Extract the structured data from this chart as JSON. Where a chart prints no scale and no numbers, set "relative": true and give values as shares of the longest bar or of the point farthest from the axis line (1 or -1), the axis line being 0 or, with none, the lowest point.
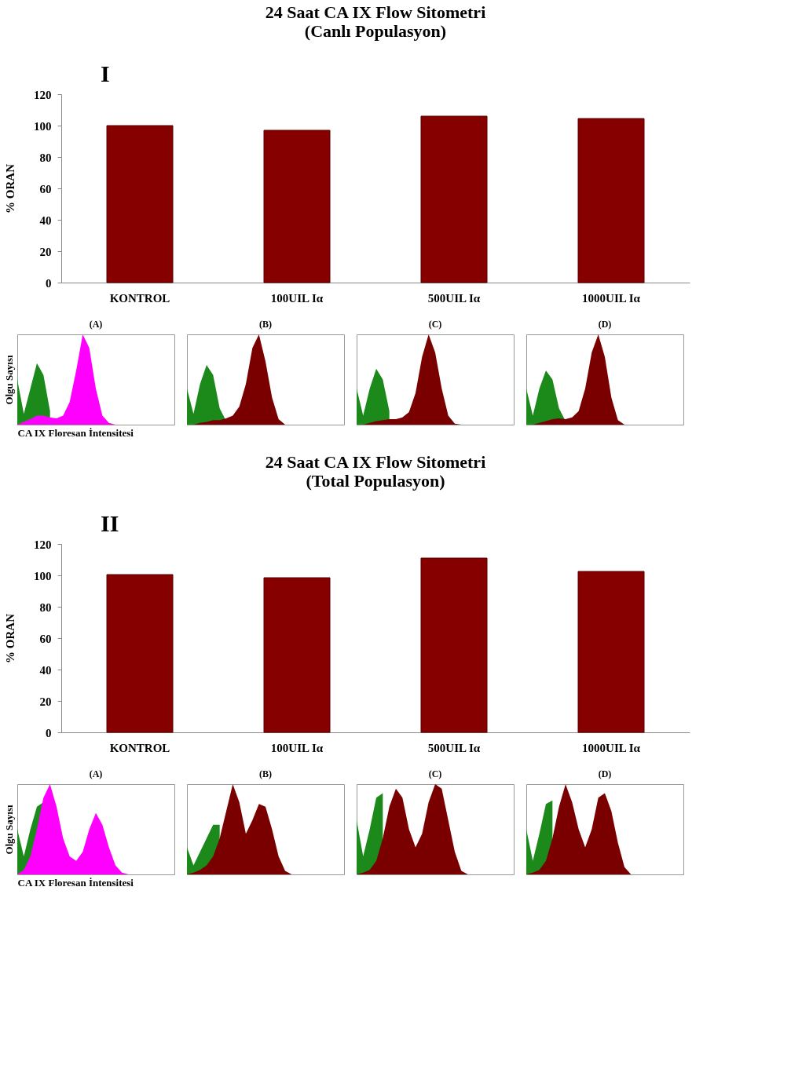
{
  "chart_data": [
    {
      "type": "bar",
      "title": [
        "24 Saat CA IX Flow Sitometri",
        "(Canlı Populasyon)"
      ],
      "annotations": [
        "I"
      ],
      "ylabel": "% ORAN",
      "categories": [
        "KONTROL",
        "100UIL Iα",
        "500UIL Iα",
        "1000UIL Iα"
      ],
      "values": [
        100,
        97,
        106,
        104.5
      ],
      "color": "#860000",
      "ylim": [
        0,
        120
      ],
      "yticks": [
        0,
        20,
        40,
        60,
        80,
        100,
        120
      ],
      "grid": false
    },
    {
      "type": "area",
      "relative": true,
      "title": "(A)",
      "xlabel": "CA IX Floresan İntensitesi",
      "ylabel": "Olgu Sayısı",
      "tick_labels": false,
      "categories": [
        null,
        null,
        null,
        null,
        null,
        null,
        null,
        null,
        null,
        null,
        null,
        null,
        null,
        null,
        null,
        null,
        null,
        null,
        null,
        null,
        null,
        null,
        null,
        null,
        null
      ],
      "series": [
        {
          "color": "#1b8a1b",
          "values": [
            0.5,
            0.12,
            0.4,
            0.68,
            0.55,
            0.15,
            null,
            null,
            null,
            null,
            null,
            null,
            null,
            null,
            null,
            null,
            null,
            null,
            null,
            null,
            null,
            null,
            null,
            null,
            null
          ]
        },
        {
          "color": "#ff00ff",
          "values": [
            0,
            0.03,
            0.06,
            0.1,
            0.1,
            0.08,
            0.07,
            0.1,
            0.25,
            0.6,
            1,
            0.85,
            0.4,
            0.1,
            0.02,
            0,
            0,
            0,
            0,
            0,
            0,
            0,
            0,
            0,
            0
          ]
        }
      ]
    },
    {
      "type": "area",
      "relative": true,
      "title": "(B)",
      "tick_labels": false,
      "categories": [
        null,
        null,
        null,
        null,
        null,
        null,
        null,
        null,
        null,
        null,
        null,
        null,
        null,
        null,
        null,
        null,
        null,
        null,
        null,
        null,
        null,
        null,
        null,
        null,
        null
      ],
      "series": [
        {
          "color": "#1b8a1b",
          "values": [
            0.4,
            0.12,
            0.45,
            0.66,
            0.55,
            0.18,
            0.04,
            0,
            0,
            0,
            0,
            0,
            0,
            0,
            0,
            0,
            0,
            0,
            0,
            0,
            0,
            0,
            0,
            0,
            0
          ]
        },
        {
          "color": "#7a0000",
          "values": [
            0,
            0,
            0.02,
            0.03,
            0.05,
            0.05,
            0.07,
            0.1,
            0.2,
            0.45,
            0.85,
            1,
            0.7,
            0.3,
            0.06,
            0,
            0,
            0,
            0,
            0,
            0,
            0,
            0,
            0,
            0
          ]
        }
      ]
    },
    {
      "type": "area",
      "relative": true,
      "title": "(C)",
      "tick_labels": false,
      "categories": [
        null,
        null,
        null,
        null,
        null,
        null,
        null,
        null,
        null,
        null,
        null,
        null,
        null,
        null,
        null,
        null,
        null,
        null,
        null,
        null,
        null,
        null,
        null,
        null,
        null
      ],
      "series": [
        {
          "color": "#1b8a1b",
          "values": [
            0.4,
            0.1,
            0.4,
            0.62,
            0.5,
            0.15,
            null,
            null,
            null,
            null,
            null,
            null,
            null,
            null,
            null,
            null,
            null,
            null,
            null,
            null,
            null,
            null,
            null,
            null,
            null
          ]
        },
        {
          "color": "#7a0000",
          "values": [
            0,
            0,
            0.02,
            0.04,
            0.05,
            0.06,
            0.06,
            0.08,
            0.14,
            0.35,
            0.75,
            1,
            0.8,
            0.4,
            0.1,
            0.01,
            0,
            0,
            0,
            0,
            0,
            0,
            0,
            0,
            0
          ]
        }
      ]
    },
    {
      "type": "area",
      "relative": true,
      "title": "(D)",
      "tick_labels": false,
      "categories": [
        null,
        null,
        null,
        null,
        null,
        null,
        null,
        null,
        null,
        null,
        null,
        null,
        null,
        null,
        null,
        null,
        null,
        null,
        null,
        null,
        null,
        null,
        null,
        null,
        null
      ],
      "series": [
        {
          "color": "#1b8a1b",
          "values": [
            0.4,
            0.1,
            0.4,
            0.6,
            0.5,
            0.18,
            0.04,
            0,
            0,
            0,
            0,
            0,
            0,
            0,
            0,
            0,
            0,
            0,
            0,
            0,
            0,
            0,
            0,
            0,
            0
          ]
        },
        {
          "color": "#7a0000",
          "values": [
            0,
            0,
            0.02,
            0.04,
            0.06,
            0.07,
            0.06,
            0.08,
            0.15,
            0.4,
            0.8,
            1,
            0.75,
            0.3,
            0.05,
            0,
            0,
            0,
            0,
            0,
            0,
            0,
            0,
            0,
            0
          ]
        }
      ]
    },
    {
      "type": "bar",
      "title": [
        "24 Saat CA IX Flow Sitometri",
        "(Total Populasyon)"
      ],
      "annotations": [
        "II"
      ],
      "ylabel": "% ORAN",
      "categories": [
        "KONTROL",
        "100UIL Iα",
        "500UIL Iα",
        "1000UIL Iα"
      ],
      "values": [
        100.5,
        98.5,
        111,
        102.5
      ],
      "color": "#860000",
      "ylim": [
        0,
        120
      ],
      "yticks": [
        0,
        20,
        40,
        60,
        80,
        100,
        120
      ],
      "grid": false
    },
    {
      "type": "area",
      "relative": true,
      "title": "(A)",
      "xlabel": "CA IX Floresan İntensitesi",
      "ylabel": "Olgu Sayısı",
      "tick_labels": false,
      "categories": [
        null,
        null,
        null,
        null,
        null,
        null,
        null,
        null,
        null,
        null,
        null,
        null,
        null,
        null,
        null,
        null,
        null,
        null,
        null,
        null,
        null,
        null,
        null,
        null,
        null
      ],
      "series": [
        {
          "color": "#1b8a1b",
          "values": [
            0.5,
            0.2,
            0.5,
            0.75,
            0.8,
            null,
            null,
            null,
            null,
            null,
            null,
            null,
            null,
            null,
            null,
            null,
            null,
            null,
            null,
            null,
            null,
            null,
            null,
            null,
            null
          ]
        },
        {
          "color": "#ff00ff",
          "values": [
            0,
            0.05,
            0.2,
            0.5,
            0.85,
            1,
            0.75,
            0.4,
            0.2,
            0.15,
            0.25,
            0.5,
            0.68,
            0.55,
            0.3,
            0.1,
            0.02,
            0,
            0,
            0,
            0,
            0,
            0,
            0,
            0
          ]
        }
      ]
    },
    {
      "type": "area",
      "relative": true,
      "title": "(B)",
      "tick_labels": false,
      "categories": [
        null,
        null,
        null,
        null,
        null,
        null,
        null,
        null,
        null,
        null,
        null,
        null,
        null,
        null,
        null,
        null,
        null,
        null,
        null,
        null,
        null,
        null,
        null,
        null,
        null
      ],
      "series": [
        {
          "color": "#1b8a1b",
          "values": [
            0.3,
            0.1,
            0.25,
            0.4,
            0.55,
            0.55,
            null,
            null,
            null,
            null,
            null,
            null,
            null,
            null,
            null,
            null,
            null,
            null,
            null,
            null,
            null,
            null,
            null,
            null,
            null
          ]
        },
        {
          "color": "#7a0000",
          "values": [
            0,
            0.02,
            0.05,
            0.1,
            0.2,
            0.4,
            0.7,
            1,
            0.8,
            0.45,
            0.6,
            0.78,
            0.75,
            0.5,
            0.2,
            0.04,
            0,
            0,
            0,
            0,
            0,
            0,
            0,
            0,
            0
          ]
        }
      ]
    },
    {
      "type": "area",
      "relative": true,
      "title": "(C)",
      "tick_labels": false,
      "categories": [
        null,
        null,
        null,
        null,
        null,
        null,
        null,
        null,
        null,
        null,
        null,
        null,
        null,
        null,
        null,
        null,
        null,
        null,
        null,
        null,
        null,
        null,
        null,
        null,
        null
      ],
      "series": [
        {
          "color": "#1b8a1b",
          "values": [
            0.6,
            0.2,
            0.5,
            0.85,
            0.9,
            null,
            null,
            null,
            null,
            null,
            null,
            null,
            null,
            null,
            null,
            null,
            null,
            null,
            null,
            null,
            null,
            null,
            null,
            null,
            null
          ]
        },
        {
          "color": "#7a0000",
          "values": [
            0,
            0.02,
            0.05,
            0.15,
            0.4,
            0.75,
            0.95,
            0.85,
            0.5,
            0.3,
            0.45,
            0.8,
            1,
            0.95,
            0.6,
            0.25,
            0.04,
            0,
            0,
            0,
            0,
            0,
            0,
            0,
            0
          ]
        }
      ]
    },
    {
      "type": "area",
      "relative": true,
      "title": "(D)",
      "tick_labels": false,
      "categories": [
        null,
        null,
        null,
        null,
        null,
        null,
        null,
        null,
        null,
        null,
        null,
        null,
        null,
        null,
        null,
        null,
        null,
        null,
        null,
        null,
        null,
        null,
        null,
        null,
        null
      ],
      "series": [
        {
          "color": "#1b8a1b",
          "values": [
            0.5,
            0.15,
            0.45,
            0.78,
            0.82,
            null,
            null,
            null,
            null,
            null,
            null,
            null,
            null,
            null,
            null,
            null,
            null,
            null,
            null,
            null,
            null,
            null,
            null,
            null,
            null
          ]
        },
        {
          "color": "#7a0000",
          "values": [
            0,
            0.02,
            0.05,
            0.15,
            0.4,
            0.75,
            1,
            0.8,
            0.5,
            0.3,
            0.5,
            0.85,
            0.9,
            0.7,
            0.35,
            0.08,
            0,
            0,
            0,
            0,
            0,
            0,
            0,
            0,
            0
          ]
        }
      ]
    }
  ]
}
